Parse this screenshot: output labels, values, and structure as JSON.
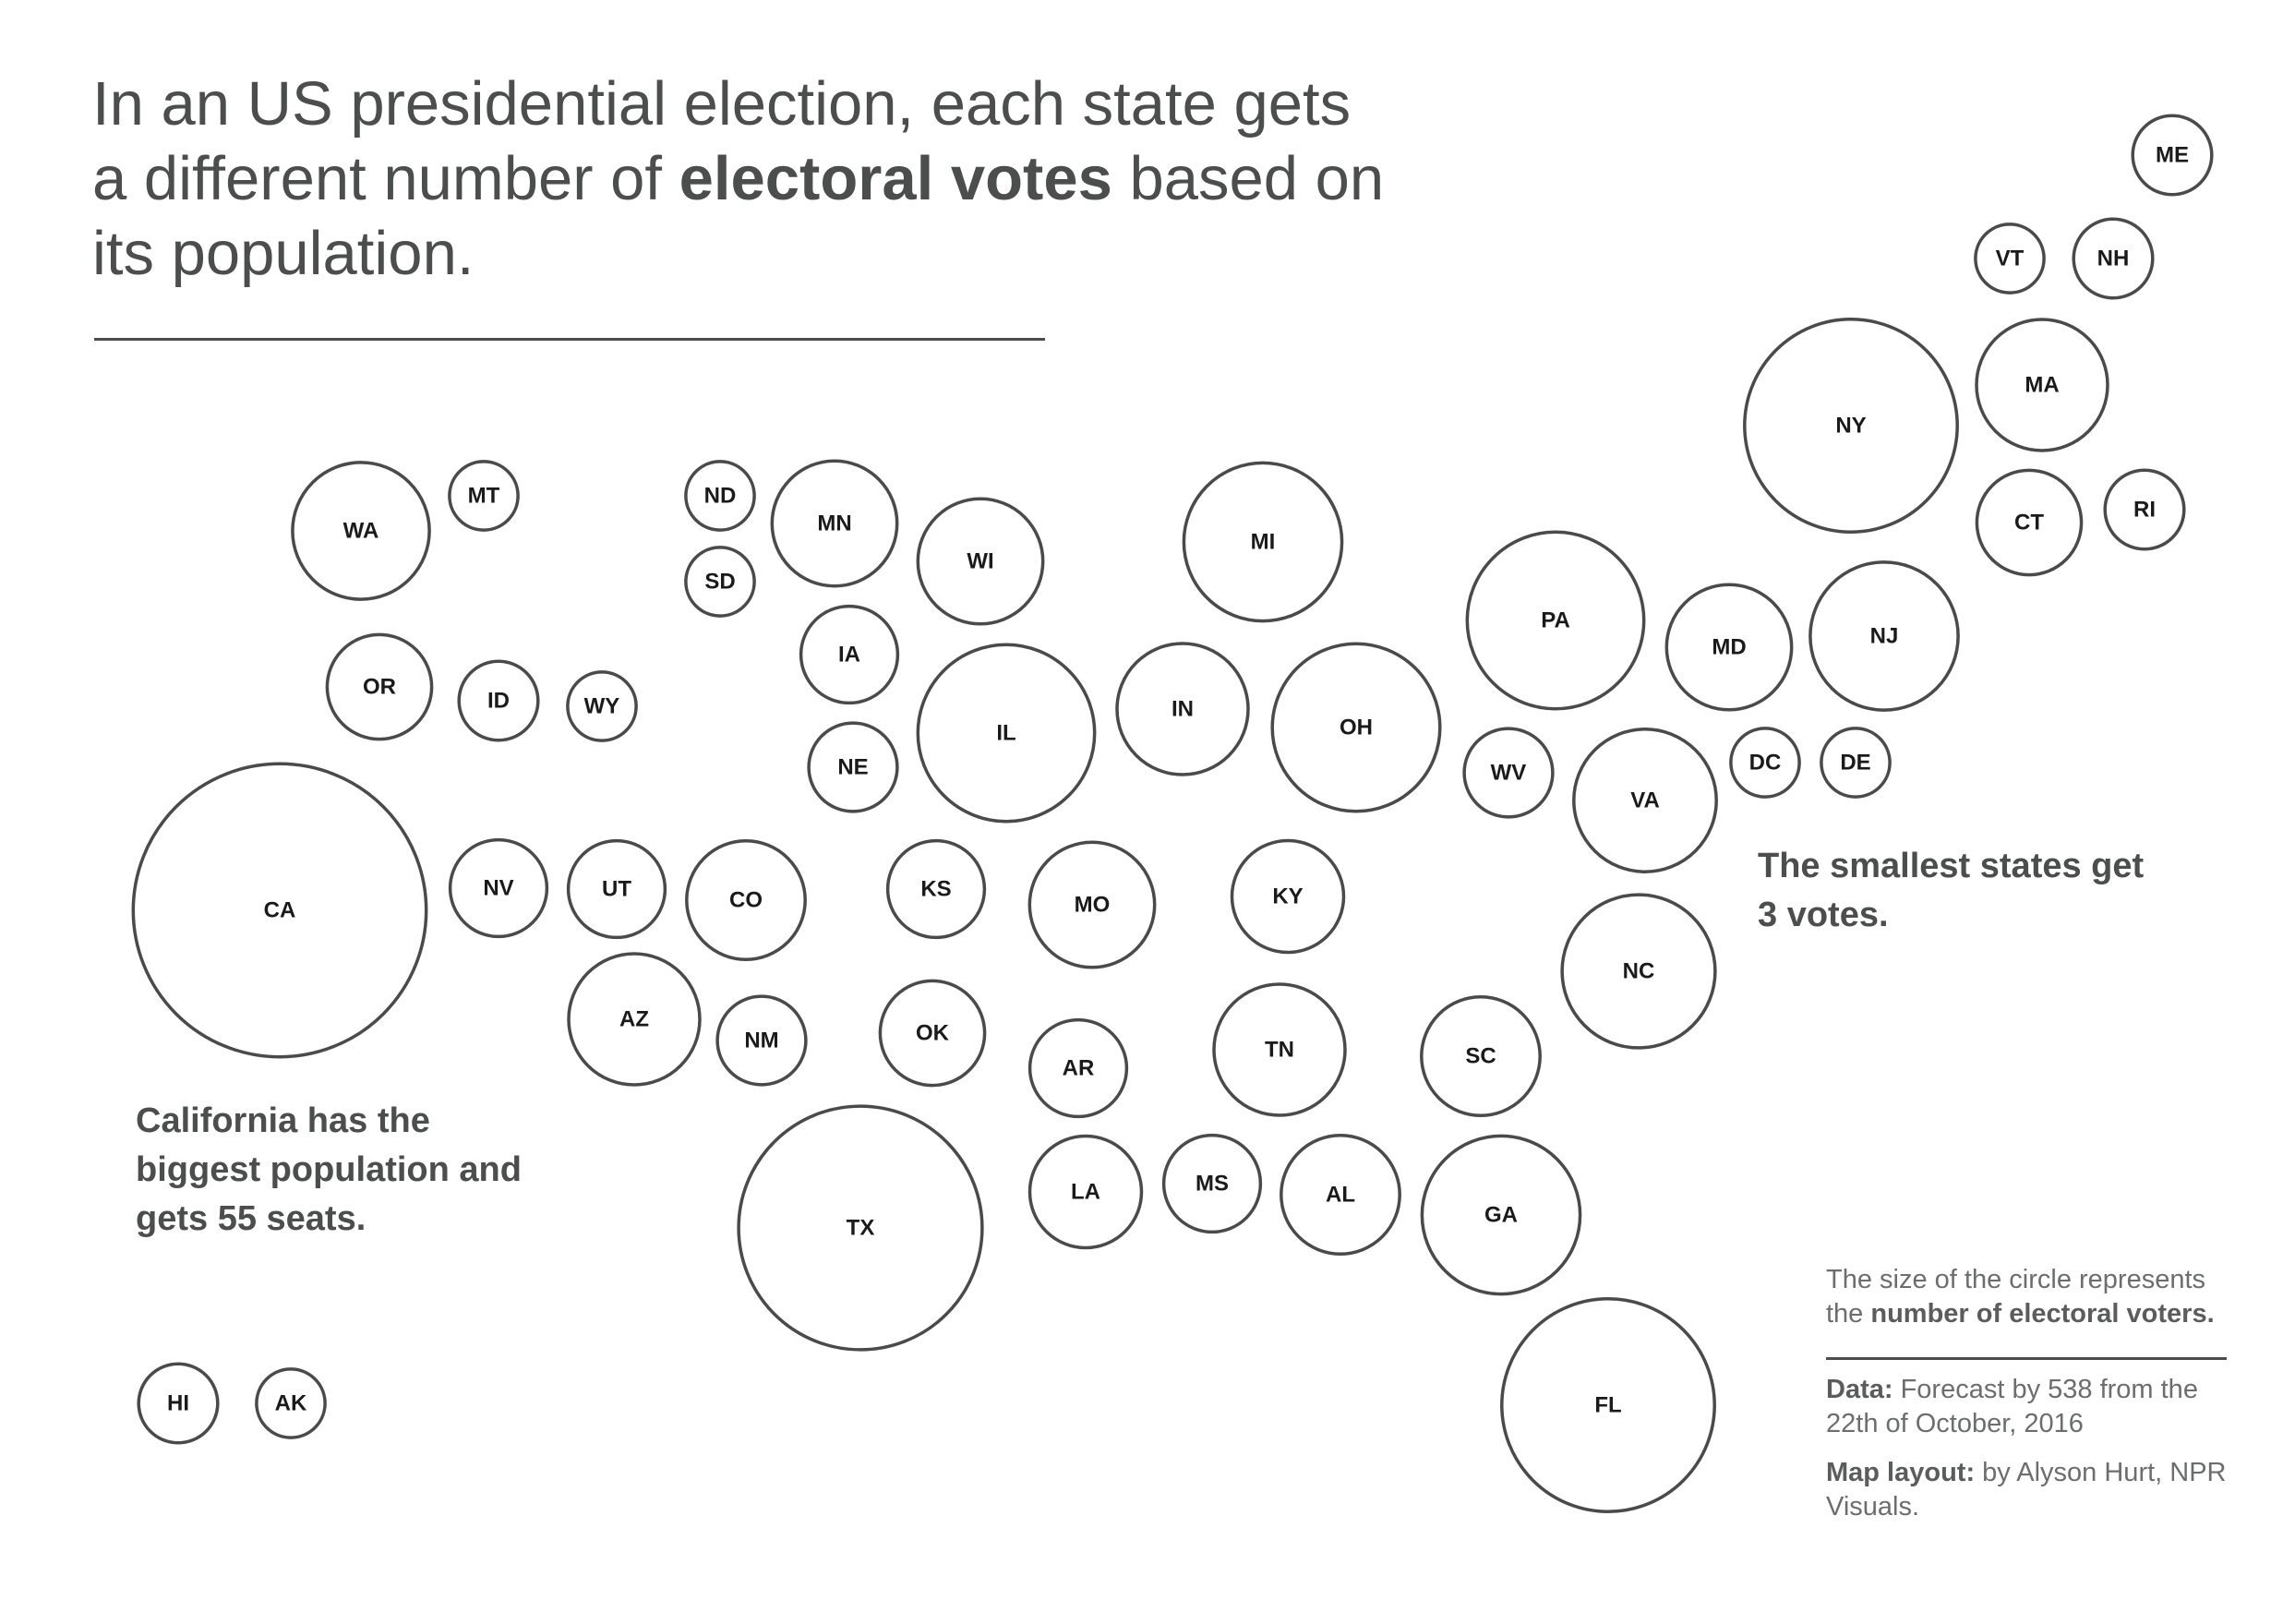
{
  "headline": {
    "part1": "In an US presidential election, each state gets a different number of ",
    "bold": "electoral votes",
    "part2": " based on its population."
  },
  "annotations": {
    "california": "California has the biggest population and gets 55 seats.",
    "smallest": "The smallest states get 3 votes."
  },
  "legend": {
    "size_text": "The size of the circle represents the ",
    "size_bold": "number of electoral voters.",
    "data_label": "Data:",
    "data_text": " Forecast by 538 from the 22th of October, 2016",
    "layout_label": "Map layout:",
    "layout_text": " by Alyson Hurt, NPR Visuals."
  },
  "colors": {
    "stroke": "#4a4a4a",
    "text": "#4b4e4c",
    "fill": "#ffffff"
  },
  "chart_data": {
    "type": "proportional-circle tile map",
    "legend": "bottom-right",
    "states": [
      {
        "abbr": "ME",
        "votes": 4
      },
      {
        "abbr": "VT",
        "votes": 3
      },
      {
        "abbr": "NH",
        "votes": 4
      },
      {
        "abbr": "MA",
        "votes": 11
      },
      {
        "abbr": "NY",
        "votes": 29
      },
      {
        "abbr": "CT",
        "votes": 7
      },
      {
        "abbr": "RI",
        "votes": 4
      },
      {
        "abbr": "WA",
        "votes": 12
      },
      {
        "abbr": "MT",
        "votes": 3
      },
      {
        "abbr": "ND",
        "votes": 3
      },
      {
        "abbr": "SD",
        "votes": 3
      },
      {
        "abbr": "MN",
        "votes": 10
      },
      {
        "abbr": "WI",
        "votes": 10
      },
      {
        "abbr": "MI",
        "votes": 16
      },
      {
        "abbr": "PA",
        "votes": 20
      },
      {
        "abbr": "MD",
        "votes": 10
      },
      {
        "abbr": "NJ",
        "votes": 14
      },
      {
        "abbr": "OR",
        "votes": 7
      },
      {
        "abbr": "ID",
        "votes": 4
      },
      {
        "abbr": "WY",
        "votes": 3
      },
      {
        "abbr": "IA",
        "votes": 6
      },
      {
        "abbr": "NE",
        "votes": 5
      },
      {
        "abbr": "IL",
        "votes": 20
      },
      {
        "abbr": "IN",
        "votes": 11
      },
      {
        "abbr": "OH",
        "votes": 18
      },
      {
        "abbr": "WV",
        "votes": 5
      },
      {
        "abbr": "VA",
        "votes": 13
      },
      {
        "abbr": "DC",
        "votes": 3
      },
      {
        "abbr": "DE",
        "votes": 3
      },
      {
        "abbr": "CA",
        "votes": 55
      },
      {
        "abbr": "NV",
        "votes": 6
      },
      {
        "abbr": "UT",
        "votes": 6
      },
      {
        "abbr": "CO",
        "votes": 9
      },
      {
        "abbr": "KS",
        "votes": 6
      },
      {
        "abbr": "MO",
        "votes": 10
      },
      {
        "abbr": "KY",
        "votes": 8
      },
      {
        "abbr": "NC",
        "votes": 15
      },
      {
        "abbr": "AZ",
        "votes": 11
      },
      {
        "abbr": "NM",
        "votes": 5
      },
      {
        "abbr": "OK",
        "votes": 7
      },
      {
        "abbr": "AR",
        "votes": 6
      },
      {
        "abbr": "TN",
        "votes": 11
      },
      {
        "abbr": "SC",
        "votes": 9
      },
      {
        "abbr": "TX",
        "votes": 38
      },
      {
        "abbr": "LA",
        "votes": 8
      },
      {
        "abbr": "MS",
        "votes": 6
      },
      {
        "abbr": "AL",
        "votes": 9
      },
      {
        "abbr": "GA",
        "votes": 16
      },
      {
        "abbr": "FL",
        "votes": 29
      },
      {
        "abbr": "HI",
        "votes": 4
      },
      {
        "abbr": "AK",
        "votes": 3
      }
    ]
  }
}
